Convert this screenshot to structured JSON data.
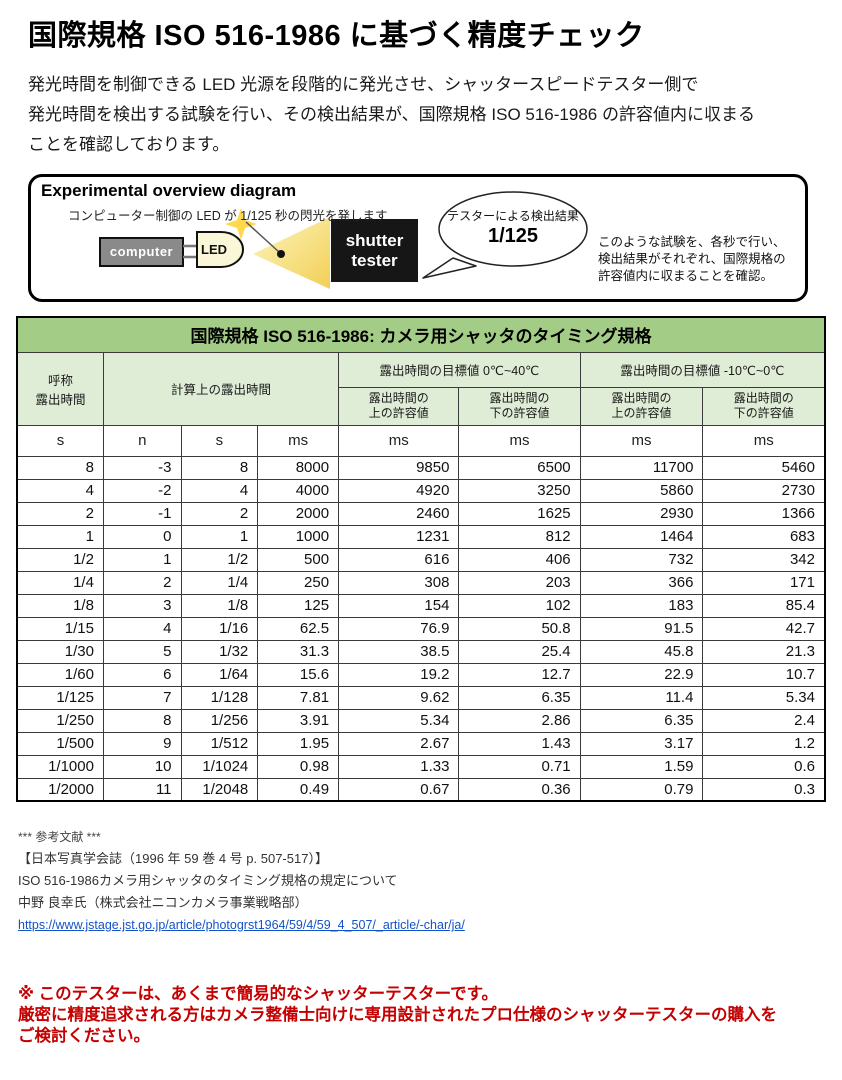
{
  "page": {
    "title": "国際規格 ISO 516-1986  に基づく精度チェック",
    "intro": {
      "line1": "発光時間を制御できる LED 光源を段階的に発光させ、シャッタースピードテスター側で",
      "line2": "発光時間を検出する試験を行い、その検出結果が、国際規格 ISO 516-1986 の許容値内に収まる",
      "line3": "ことを確認しております。"
    }
  },
  "diagram": {
    "title": "Experimental overview diagram",
    "led_caption": "コンピューター制御の LED が 1/125 秒の閃光を発します",
    "computer_label": "computer",
    "led_label": "LED",
    "tester_label": "shutter\ntester",
    "bubble": {
      "caption": "テスターによる検出結果",
      "value": "1/125"
    },
    "note": "このような試験を、各秒で行い、\n検出結果がそれぞれ、国際規格の\n許容値内に収まることを確認。"
  },
  "table": {
    "title": "国際規格 ISO 516-1986: カメラ用シャッタのタイミング規格",
    "col_nominal": "呼称\n露出時間",
    "col_calc": "計算上の露出時間",
    "group_warm": "露出時間の目標値 0℃~40℃",
    "group_cold": "露出時間の目標値 -10℃~0℃",
    "col_upper": "露出時間の\n上の許容値",
    "col_lower": "露出時間の\n下の許容値",
    "units": [
      "s",
      "n",
      "s",
      "ms",
      "ms",
      "ms",
      "ms",
      "ms"
    ],
    "rows": [
      [
        "8",
        "-3",
        "8",
        "8000",
        "9850",
        "6500",
        "11700",
        "5460"
      ],
      [
        "4",
        "-2",
        "4",
        "4000",
        "4920",
        "3250",
        "5860",
        "2730"
      ],
      [
        "2",
        "-1",
        "2",
        "2000",
        "2460",
        "1625",
        "2930",
        "1366"
      ],
      [
        "1",
        "0",
        "1",
        "1000",
        "1231",
        "812",
        "1464",
        "683"
      ],
      [
        "1/2",
        "1",
        "1/2",
        "500",
        "616",
        "406",
        "732",
        "342"
      ],
      [
        "1/4",
        "2",
        "1/4",
        "250",
        "308",
        "203",
        "366",
        "171"
      ],
      [
        "1/8",
        "3",
        "1/8",
        "125",
        "154",
        "102",
        "183",
        "85.4"
      ],
      [
        "1/15",
        "4",
        "1/16",
        "62.5",
        "76.9",
        "50.8",
        "91.5",
        "42.7"
      ],
      [
        "1/30",
        "5",
        "1/32",
        "31.3",
        "38.5",
        "25.4",
        "45.8",
        "21.3"
      ],
      [
        "1/60",
        "6",
        "1/64",
        "15.6",
        "19.2",
        "12.7",
        "22.9",
        "10.7"
      ],
      [
        "1/125",
        "7",
        "1/128",
        "7.81",
        "9.62",
        "6.35",
        "11.4",
        "5.34"
      ],
      [
        "1/250",
        "8",
        "1/256",
        "3.91",
        "5.34",
        "2.86",
        "6.35",
        "2.4"
      ],
      [
        "1/500",
        "9",
        "1/512",
        "1.95",
        "2.67",
        "1.43",
        "3.17",
        "1.2"
      ],
      [
        "1/1000",
        "10",
        "1/1024",
        "0.98",
        "1.33",
        "0.71",
        "1.59",
        "0.6"
      ],
      [
        "1/2000",
        "11",
        "1/2048",
        "0.49",
        "0.67",
        "0.36",
        "0.79",
        "0.3"
      ]
    ]
  },
  "references": {
    "marker": "*** 参考文献 ***",
    "journal": "【日本写真学会誌（1996 年 59 巻 4 号 p. 507-517）】",
    "article": "ISO 516-1986カメラ用シャッタのタイミング規格の規定について",
    "author": "中野 良幸氏（株式会社ニコンカメラ事業戦略部）",
    "url": "https://www.jstage.jst.go.jp/article/photogrst1964/59/4/59_4_507/_article/-char/ja/"
  },
  "warning": {
    "line1": "※ このテスターは、あくまで簡易的なシャッターテスターです。",
    "line2": "厳密に精度追求される方はカメラ整備士向けに専用設計されたプロ仕様のシャッターテスターの購入を",
    "line3": "ご検討ください。"
  },
  "colors": {
    "table_title_green": "#a3cc86",
    "table_header_green": "#dfecd6",
    "warning_red": "#c40000",
    "link_blue": "#1352c8",
    "cone_yellow": "#f2cf55",
    "sparkle_gold": "#ffd84d",
    "tester_box_black": "#161616",
    "computer_box_gray": "#8a8a8a"
  }
}
